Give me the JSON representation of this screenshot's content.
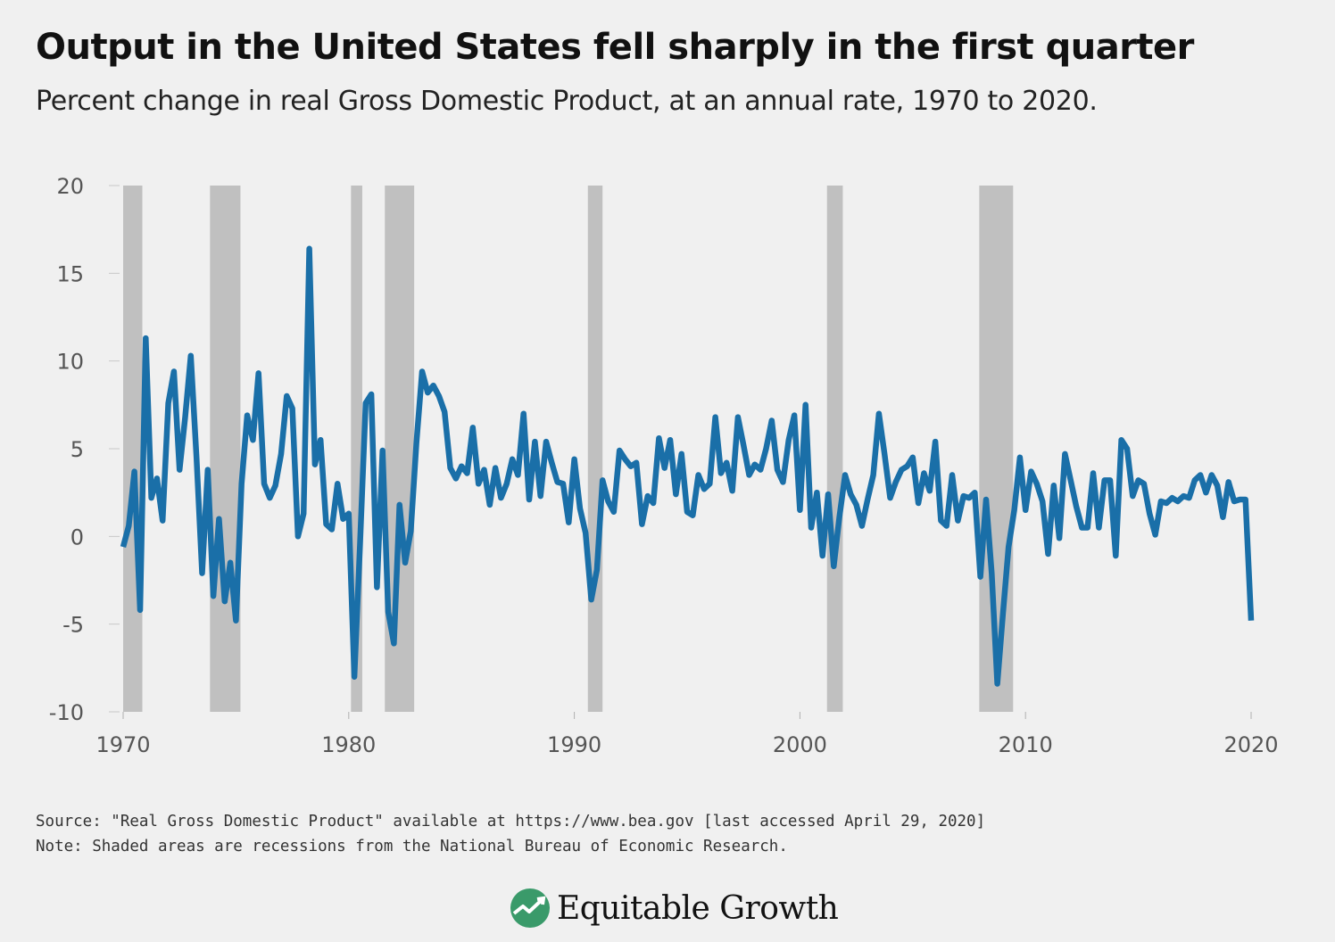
{
  "title": "Output in the United States fell sharply in the first quarter",
  "subtitle": "Percent change in real Gross Domestic Product, at an annual rate, 1970 to 2020.",
  "source": "Source: \"Real Gross Domestic Product\" available at https://www.bea.gov [last accessed April 29, 2020]",
  "note": "Note: Shaded areas are recessions from the National Bureau of Economic Research.",
  "logo_text": "Equitable Growth",
  "colors": {
    "line": "#1a6fa8",
    "recession": "#c0c0c0",
    "background": "#f0f0f0",
    "logo_green": "#3a9a6a"
  },
  "chart_data": {
    "type": "line",
    "title": "Output in the United States fell sharply in the first quarter",
    "xlabel": "",
    "ylabel": "",
    "xlim": [
      1970,
      2020
    ],
    "ylim": [
      -10,
      20
    ],
    "x_ticks": [
      1970,
      1980,
      1990,
      2000,
      2010,
      2020
    ],
    "y_ticks": [
      -10,
      -5,
      0,
      5,
      10,
      15,
      20
    ],
    "grid": false,
    "legend": "none",
    "recessions": [
      [
        1970.0,
        1970.85
      ],
      [
        1973.85,
        1975.2
      ],
      [
        1980.1,
        1980.6
      ],
      [
        1981.6,
        1982.9
      ],
      [
        1990.6,
        1991.25
      ],
      [
        2001.2,
        2001.9
      ],
      [
        2007.95,
        2009.45
      ]
    ],
    "series": [
      {
        "name": "",
        "start": 1970.0,
        "step": 0.25,
        "values": [
          -0.6,
          0.6,
          3.7,
          -4.2,
          11.3,
          2.2,
          3.3,
          0.9,
          7.6,
          9.4,
          3.8,
          6.8,
          10.3,
          4.5,
          -2.1,
          3.8,
          -3.4,
          1.0,
          -3.7,
          -1.5,
          -4.8,
          3.0,
          6.9,
          5.5,
          9.3,
          3.0,
          2.2,
          2.9,
          4.7,
          8.0,
          7.3,
          0.0,
          1.3,
          16.4,
          4.1,
          5.5,
          0.7,
          0.4,
          3.0,
          1.0,
          1.3,
          -8.0,
          -0.5,
          7.6,
          8.1,
          -2.9,
          4.9,
          -4.3,
          -6.1,
          1.8,
          -1.5,
          0.3,
          5.3,
          9.4,
          8.2,
          8.6,
          8.0,
          7.1,
          3.9,
          3.3,
          4.0,
          3.6,
          6.2,
          3.0,
          3.8,
          1.8,
          3.9,
          2.2,
          3.0,
          4.4,
          3.5,
          7.0,
          2.1,
          5.4,
          2.3,
          5.4,
          4.2,
          3.1,
          3.0,
          0.8,
          4.4,
          1.6,
          0.2,
          -3.6,
          -1.9,
          3.2,
          2.0,
          1.4,
          4.9,
          4.4,
          4.0,
          4.2,
          0.7,
          2.3,
          1.9,
          5.6,
          3.9,
          5.5,
          2.4,
          4.7,
          1.4,
          1.2,
          3.5,
          2.7,
          3.0,
          6.8,
          3.6,
          4.2,
          2.6,
          6.8,
          5.2,
          3.5,
          4.1,
          3.8,
          5.0,
          6.6,
          3.8,
          3.1,
          5.5,
          6.9,
          1.5,
          7.5,
          0.5,
          2.5,
          -1.1,
          2.4,
          -1.7,
          1.1,
          3.5,
          2.4,
          1.8,
          0.6,
          2.1,
          3.5,
          7.0,
          4.7,
          2.2,
          3.1,
          3.8,
          4.0,
          4.5,
          1.9,
          3.6,
          2.6,
          5.4,
          0.9,
          0.6,
          3.5,
          0.9,
          2.3,
          2.2,
          2.5,
          -2.3,
          2.1,
          -2.1,
          -8.4,
          -4.4,
          -0.6,
          1.5,
          4.5,
          1.5,
          3.7,
          3.0,
          2.0,
          -1.0,
          2.9,
          -0.1,
          4.7,
          3.2,
          1.7,
          0.5,
          0.5,
          3.6,
          0.5,
          3.2,
          3.2,
          -1.1,
          5.5,
          5.0,
          2.3,
          3.2,
          3.0,
          1.3,
          0.1,
          2.0,
          1.9,
          2.2,
          2.0,
          2.3,
          2.2,
          3.2,
          3.5,
          2.5,
          3.5,
          2.9,
          1.1,
          3.1,
          2.0,
          2.1,
          2.1,
          -4.8
        ]
      }
    ]
  }
}
